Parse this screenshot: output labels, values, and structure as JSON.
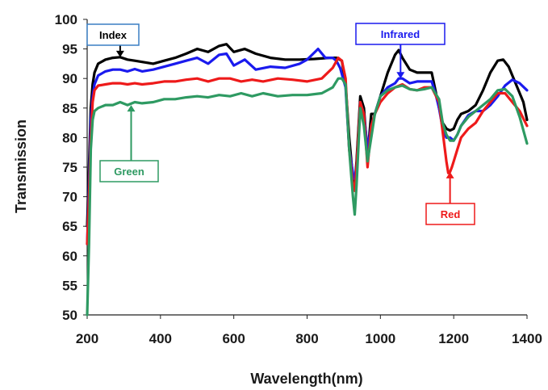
{
  "chart_data": {
    "type": "line",
    "title": "",
    "xlabel": "Wavelength(nm)",
    "ylabel": "Transmission",
    "xlim": [
      200,
      1400
    ],
    "ylim": [
      50,
      100
    ],
    "xticks": [
      200,
      400,
      600,
      800,
      1000,
      1200,
      1400
    ],
    "yticks": [
      50,
      55,
      60,
      65,
      70,
      75,
      80,
      85,
      90,
      95,
      100
    ],
    "grid": false,
    "legend": "none",
    "series": [
      {
        "name": "Index",
        "color": "#000000",
        "x": [
          200,
          205,
          210,
          215,
          220,
          230,
          250,
          270,
          290,
          310,
          330,
          350,
          380,
          410,
          440,
          470,
          500,
          530,
          560,
          580,
          600,
          630,
          660,
          700,
          740,
          780,
          820,
          860,
          880,
          895,
          905,
          915,
          925,
          930,
          935,
          945,
          955,
          965,
          975,
          985,
          1000,
          1020,
          1040,
          1050,
          1060,
          1080,
          1100,
          1120,
          1140,
          1150,
          1160,
          1170,
          1180,
          1190,
          1200,
          1210,
          1220,
          1240,
          1260,
          1280,
          1300,
          1320,
          1335,
          1350,
          1370,
          1390,
          1400
        ],
        "values": [
          65,
          75,
          85,
          89,
          91,
          92.5,
          93.2,
          93.5,
          93.6,
          93.2,
          93,
          92.8,
          92.5,
          93,
          93.5,
          94.2,
          95,
          94.5,
          95.5,
          95.8,
          94.5,
          95,
          94.2,
          93.5,
          93.2,
          93.2,
          93.3,
          93.5,
          93.5,
          93,
          89,
          80,
          73,
          72,
          76,
          87,
          85,
          77,
          84,
          84,
          87,
          91,
          94,
          94.8,
          93.5,
          91.5,
          91,
          91,
          91,
          88,
          85,
          82.5,
          81.5,
          81.2,
          81.5,
          83,
          84,
          84.5,
          85.5,
          88,
          91,
          93,
          93.2,
          92,
          89,
          86,
          83
        ]
      },
      {
        "name": "Infrared",
        "color": "#1a1aee",
        "x": [
          200,
          205,
          210,
          215,
          220,
          230,
          250,
          270,
          290,
          310,
          330,
          350,
          380,
          410,
          440,
          470,
          500,
          530,
          560,
          580,
          600,
          630,
          660,
          700,
          740,
          780,
          800,
          830,
          850,
          870,
          880,
          890,
          905,
          915,
          925,
          930,
          935,
          945,
          955,
          965,
          975,
          985,
          1000,
          1020,
          1040,
          1050,
          1060,
          1080,
          1100,
          1120,
          1140,
          1150,
          1160,
          1170,
          1180,
          1190,
          1200,
          1210,
          1220,
          1240,
          1260,
          1280,
          1300,
          1320,
          1340,
          1360,
          1380,
          1400
        ],
        "values": [
          62,
          72,
          83,
          87,
          89,
          90.5,
          91.2,
          91.5,
          91.5,
          91.2,
          91.6,
          91.2,
          91.5,
          92,
          92.5,
          93,
          93.5,
          92.5,
          94,
          94.2,
          92.2,
          93.2,
          91.5,
          92,
          91.8,
          92.5,
          93.2,
          95,
          93.5,
          93.5,
          93,
          91.8,
          88.5,
          78,
          74,
          73,
          75,
          86,
          84,
          78,
          82,
          84,
          87,
          88.5,
          89.2,
          90,
          90,
          89.2,
          89.5,
          89.5,
          89.5,
          87.5,
          85,
          81.5,
          80,
          80,
          79.5,
          80.5,
          82,
          83.8,
          84.5,
          84.5,
          85.5,
          87,
          88.8,
          89.8,
          89.2,
          88
        ]
      },
      {
        "name": "Red",
        "color": "#ee1a1a",
        "x": [
          200,
          205,
          210,
          215,
          220,
          230,
          250,
          270,
          290,
          310,
          330,
          350,
          380,
          410,
          440,
          470,
          500,
          530,
          560,
          590,
          620,
          650,
          680,
          720,
          760,
          800,
          840,
          870,
          885,
          895,
          905,
          915,
          925,
          930,
          935,
          945,
          955,
          965,
          975,
          985,
          1000,
          1020,
          1040,
          1060,
          1080,
          1100,
          1120,
          1140,
          1160,
          1170,
          1180,
          1185,
          1190,
          1195,
          1200,
          1210,
          1220,
          1240,
          1260,
          1280,
          1300,
          1320,
          1340,
          1360,
          1380,
          1400
        ],
        "values": [
          62,
          70,
          80,
          86,
          88,
          88.8,
          89,
          89.2,
          89.2,
          89,
          89.2,
          89,
          89.2,
          89.5,
          89.5,
          89.8,
          90,
          89.5,
          90,
          90,
          89.5,
          89.8,
          89.5,
          90,
          89.8,
          89.5,
          90,
          91.8,
          93.5,
          93,
          90,
          78,
          72,
          71,
          75,
          86,
          84,
          75,
          82,
          84,
          86,
          87.5,
          88.5,
          89,
          88.2,
          88,
          88.5,
          88.5,
          86,
          81,
          76,
          74,
          74.2,
          75,
          76,
          78,
          80,
          81.5,
          82.5,
          84.5,
          86,
          87.5,
          87.5,
          86,
          84.5,
          82
        ]
      },
      {
        "name": "Green",
        "color": "#2e9a62",
        "x": [
          200,
          205,
          210,
          215,
          220,
          230,
          250,
          270,
          290,
          310,
          330,
          350,
          380,
          410,
          440,
          470,
          500,
          530,
          560,
          590,
          620,
          650,
          680,
          720,
          760,
          800,
          840,
          870,
          885,
          895,
          905,
          915,
          925,
          930,
          935,
          945,
          955,
          965,
          975,
          985,
          1000,
          1020,
          1040,
          1060,
          1080,
          1100,
          1120,
          1140,
          1160,
          1170,
          1180,
          1190,
          1200,
          1210,
          1220,
          1240,
          1260,
          1280,
          1300,
          1320,
          1340,
          1360,
          1380,
          1400
        ],
        "values": [
          50,
          62,
          78,
          83,
          84.5,
          85,
          85.5,
          85.5,
          86,
          85.5,
          86,
          85.8,
          86,
          86.5,
          86.5,
          86.8,
          87,
          86.8,
          87.2,
          87,
          87.5,
          87,
          87.5,
          87,
          87.2,
          87.2,
          87.5,
          88.5,
          90,
          90,
          89,
          78,
          70,
          67,
          72,
          85,
          82,
          76,
          80,
          84,
          87,
          88,
          88.5,
          88.8,
          88.2,
          88,
          88.2,
          88.5,
          86.5,
          82.5,
          80.5,
          79.5,
          79.5,
          80.5,
          82,
          83.5,
          84.5,
          85.5,
          86.5,
          88,
          88.2,
          87,
          83.5,
          79
        ]
      }
    ],
    "annotations": [
      {
        "text": "Index",
        "color": "#000000",
        "target": [
          290,
          93.6
        ]
      },
      {
        "text": "Infrared",
        "color": "#1a1aee",
        "target": [
          1055,
          90
        ]
      },
      {
        "text": "Green",
        "color": "#2e9a62",
        "target": [
          320,
          85.5
        ]
      },
      {
        "text": "Red",
        "color": "#ee1a1a",
        "target": [
          1190,
          74.2
        ]
      }
    ]
  }
}
